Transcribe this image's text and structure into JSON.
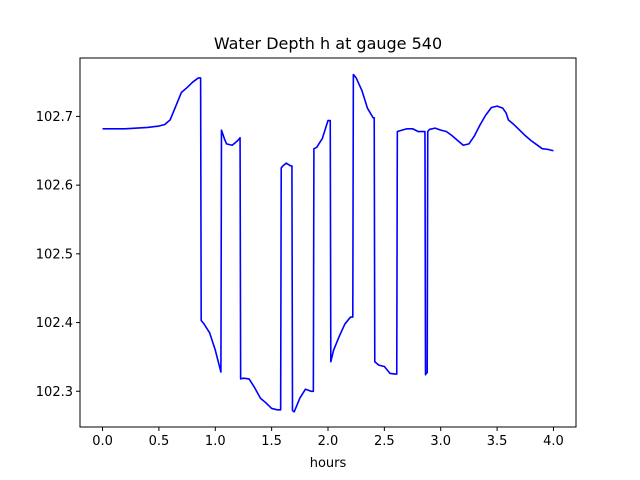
{
  "chart_data": {
    "type": "line",
    "title": "Water Depth h at gauge 540",
    "xlabel": "hours",
    "ylabel": "",
    "xlim": [
      -0.2,
      4.2
    ],
    "ylim": [
      102.248,
      102.785
    ],
    "xticks": [
      0.0,
      0.5,
      1.0,
      1.5,
      2.0,
      2.5,
      3.0,
      3.5,
      4.0
    ],
    "xtick_labels": [
      "0.0",
      "0.5",
      "1.0",
      "1.5",
      "2.0",
      "2.5",
      "3.0",
      "3.5",
      "4.0"
    ],
    "yticks": [
      102.3,
      102.4,
      102.5,
      102.6,
      102.7
    ],
    "ytick_labels": [
      "102.3",
      "102.4",
      "102.5",
      "102.6",
      "102.7"
    ],
    "grid": false,
    "series": [
      {
        "color": "#0000ff",
        "x": [
          0.0,
          0.2,
          0.4,
          0.5,
          0.55,
          0.6,
          0.65,
          0.7,
          0.75,
          0.8,
          0.85,
          0.87,
          0.875,
          0.9,
          0.95,
          1.0,
          1.05,
          1.055,
          1.08,
          1.1,
          1.15,
          1.2,
          1.22,
          1.225,
          1.25,
          1.3,
          1.35,
          1.4,
          1.45,
          1.5,
          1.55,
          1.58,
          1.585,
          1.6,
          1.63,
          1.67,
          1.68,
          1.685,
          1.7,
          1.72,
          1.75,
          1.8,
          1.85,
          1.87,
          1.875,
          1.9,
          1.95,
          2.0,
          2.02,
          2.025,
          2.05,
          2.1,
          2.15,
          2.2,
          2.22,
          2.225,
          2.25,
          2.3,
          2.35,
          2.4,
          2.41,
          2.415,
          2.45,
          2.5,
          2.55,
          2.6,
          2.61,
          2.615,
          2.7,
          2.75,
          2.8,
          2.86,
          2.865,
          2.875,
          2.88,
          2.885,
          2.9,
          2.95,
          3.0,
          3.05,
          3.1,
          3.15,
          3.2,
          3.25,
          3.3,
          3.35,
          3.4,
          3.45,
          3.5,
          3.55,
          3.58,
          3.6,
          3.65,
          3.7,
          3.75,
          3.8,
          3.85,
          3.9,
          3.95,
          4.0
        ],
        "y": [
          102.682,
          102.682,
          102.684,
          102.686,
          102.688,
          102.695,
          102.715,
          102.735,
          102.742,
          102.75,
          102.756,
          102.756,
          102.403,
          102.398,
          102.385,
          102.36,
          102.328,
          102.68,
          102.668,
          102.66,
          102.658,
          102.665,
          102.669,
          102.318,
          102.319,
          102.318,
          102.305,
          102.29,
          102.283,
          102.275,
          102.273,
          102.273,
          102.625,
          102.628,
          102.632,
          102.628,
          102.628,
          102.272,
          102.27,
          102.278,
          102.29,
          102.303,
          102.3,
          102.3,
          102.653,
          102.655,
          102.668,
          102.694,
          102.694,
          102.343,
          102.36,
          102.38,
          102.398,
          102.408,
          102.408,
          102.761,
          102.756,
          102.738,
          102.712,
          102.698,
          102.698,
          102.343,
          102.338,
          102.336,
          102.326,
          102.325,
          102.325,
          102.678,
          102.682,
          102.682,
          102.678,
          102.678,
          102.324,
          102.327,
          102.327,
          102.678,
          102.681,
          102.683,
          102.68,
          102.678,
          102.672,
          102.665,
          102.658,
          102.66,
          102.672,
          102.688,
          102.702,
          102.713,
          102.715,
          102.712,
          102.705,
          102.695,
          102.688,
          102.68,
          102.672,
          102.665,
          102.659,
          102.653,
          102.652,
          102.65
        ]
      }
    ]
  }
}
